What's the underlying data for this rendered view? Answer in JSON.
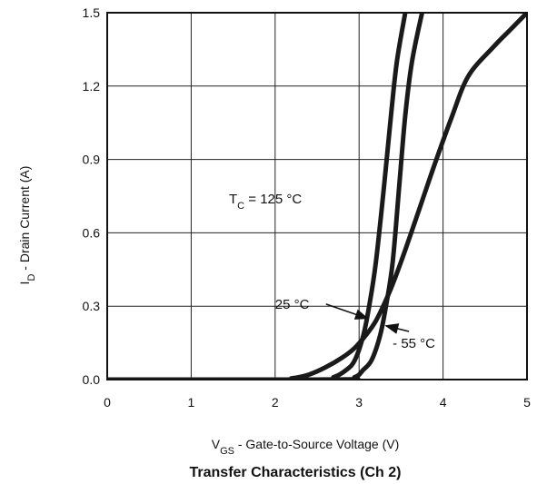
{
  "chart_data": {
    "type": "line",
    "title": "Transfer Characteristics (Ch 2)",
    "xlabel": {
      "main": "V",
      "sub": "GS",
      "rest": " - Gate-to-Source Voltage (V)"
    },
    "ylabel": {
      "main": "I",
      "sub": "D",
      "rest": " - Drain Current (A)"
    },
    "xlim": [
      0,
      5
    ],
    "ylim": [
      0,
      1.5
    ],
    "xticks": [
      0,
      1,
      2,
      3,
      4,
      5
    ],
    "xtick_labels": [
      "0",
      "1",
      "2",
      "3",
      "4",
      "5"
    ],
    "yticks": [
      0,
      0.3,
      0.6,
      0.9,
      1.2,
      1.5
    ],
    "ytick_labels": [
      "0.0",
      "0.3",
      "0.6",
      "0.9",
      "1.2",
      "1.5"
    ],
    "grid": true,
    "line_color": "#1a1a1a",
    "series": [
      {
        "name": "125 °C",
        "x": [
          0,
          2.0,
          2.2,
          2.4,
          2.6,
          2.8,
          2.95,
          3.1,
          3.2,
          3.3,
          3.4,
          3.55,
          3.75,
          3.9,
          4.1,
          4.3,
          4.6,
          4.8,
          5.0
        ],
        "y": [
          0,
          0,
          0.005,
          0.02,
          0.05,
          0.09,
          0.13,
          0.19,
          0.24,
          0.31,
          0.39,
          0.53,
          0.73,
          0.88,
          1.07,
          1.24,
          1.36,
          1.43,
          1.5
        ]
      },
      {
        "name": "25 °C",
        "x": [
          0,
          2.5,
          2.7,
          2.85,
          2.95,
          3.05,
          3.12,
          3.2,
          3.3,
          3.38,
          3.45,
          3.55
        ],
        "y": [
          0,
          0,
          0.01,
          0.04,
          0.08,
          0.18,
          0.3,
          0.48,
          0.8,
          1.08,
          1.3,
          1.5
        ]
      },
      {
        "name": "- 55 °C",
        "x": [
          0,
          2.7,
          2.95,
          3.05,
          3.15,
          3.25,
          3.32,
          3.4,
          3.48,
          3.55,
          3.63,
          3.75
        ],
        "y": [
          0,
          0,
          0.01,
          0.04,
          0.08,
          0.18,
          0.3,
          0.48,
          0.8,
          1.08,
          1.3,
          1.5
        ]
      }
    ],
    "annotations": [
      {
        "text": "125 °C",
        "prefix": "T",
        "prefix_sub": "C",
        "eq": " = ",
        "x": 1.45,
        "y": 0.72
      },
      {
        "text": "25 °C",
        "x": 2.0,
        "y": 0.29,
        "arrow_to": [
          3.1,
          0.25
        ]
      },
      {
        "text": "- 55 °C",
        "x": 3.4,
        "y": 0.13,
        "arrow_to": [
          3.32,
          0.22
        ]
      }
    ]
  }
}
